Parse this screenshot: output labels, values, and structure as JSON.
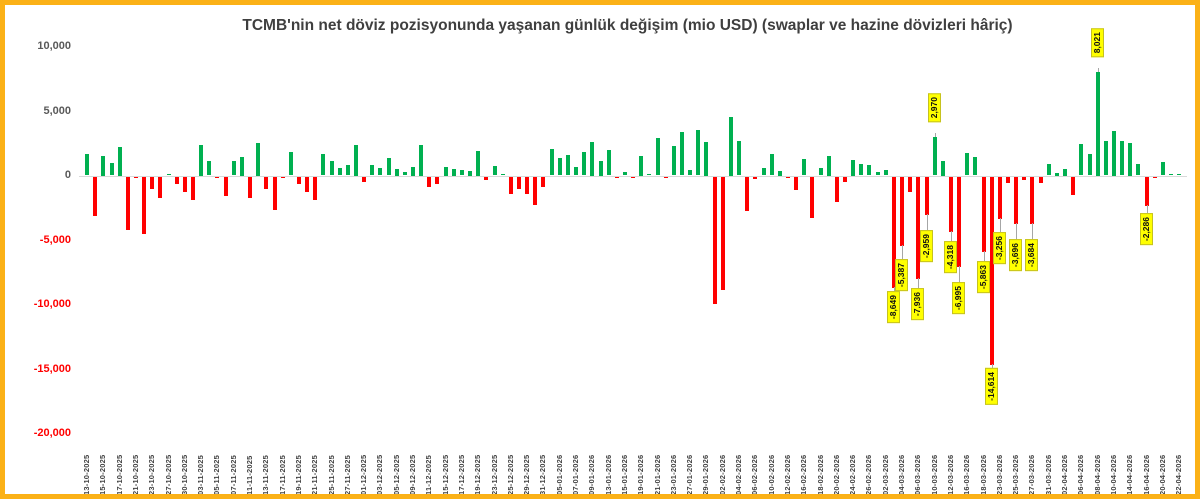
{
  "title": "TCMB'nin net döviz pozisyonunda yaşanan günlük değişim (mio USD) (swaplar ve hazine dövizleri hâriç)",
  "colors": {
    "positive_bar": "#00B050",
    "negative_bar": "#FF0000",
    "callout_background": "#FFFF00",
    "frame_border": "#FBB117",
    "axis_text": "#595959",
    "negative_axis_text": "#FF0000",
    "date_text": "#404040",
    "zero_line": "#D9D9D9"
  },
  "chart_data": {
    "type": "bar",
    "title": "TCMB'nin net döviz pozisyonunda yaşanan günlük değişim (mio USD) (swaplar ve hazine dövizleri hâriç)",
    "unit": "mio USD",
    "grid": false,
    "legend": false,
    "ylim": [
      -20000,
      10000
    ],
    "y_ticks": [
      {
        "value": 10000,
        "label": "10,000"
      },
      {
        "value": 5000,
        "label": "5,000"
      },
      {
        "value": 0,
        "label": "0"
      },
      {
        "value": -5000,
        "label": "-5,000"
      },
      {
        "value": -10000,
        "label": "-10,000"
      },
      {
        "value": -15000,
        "label": "-15,000"
      },
      {
        "value": -20000,
        "label": "-20,000"
      }
    ],
    "x_tick_labels": [
      "13-10-2025",
      "15-10-2025",
      "17-10-2025",
      "21-10-2025",
      "23-10-2025",
      "27-10-2025",
      "30-10-2025",
      "03-11-2025",
      "05-11-2025",
      "07-11-2025",
      "11-11-2025",
      "13-11-2025",
      "17-11-2025",
      "19-11-2025",
      "21-11-2025",
      "25-11-2025",
      "27-11-2025",
      "01-12-2025",
      "03-12-2025",
      "05-12-2025",
      "09-12-2025",
      "11-12-2025",
      "15-12-2025",
      "17-12-2025",
      "19-12-2025",
      "23-12-2025",
      "25-12-2025",
      "29-12-2025",
      "31-12-2025",
      "05-01-2026",
      "07-01-2026",
      "09-01-2026",
      "13-01-2026",
      "15-01-2026",
      "19-01-2026",
      "21-01-2026",
      "23-01-2026",
      "27-01-2026",
      "29-01-2026",
      "02-02-2026",
      "04-02-2026",
      "06-02-2026",
      "10-02-2026",
      "12-02-2026",
      "16-02-2026",
      "18-02-2026",
      "20-02-2026",
      "24-02-2026",
      "26-02-2026",
      "02-03-2026",
      "04-03-2026",
      "06-03-2026",
      "10-03-2026",
      "12-03-2026",
      "16-03-2026",
      "18-03-2026",
      "23-03-2026",
      "25-03-2026",
      "27-03-2026",
      "31-03-2026",
      "02-04-2026",
      "06-04-2026",
      "08-04-2026",
      "10-04-2026",
      "14-04-2026",
      "16-04-2026",
      "20-04-2026",
      "22-04-2026"
    ],
    "tick_every": 2,
    "values": [
      1700,
      -3050,
      1550,
      1000,
      2250,
      -4150,
      -100,
      -4450,
      -950,
      -1700,
      150,
      -590,
      -1160,
      -1800,
      2400,
      1100,
      -150,
      -1500,
      1100,
      1470,
      -1650,
      2500,
      -950,
      -2600,
      -100,
      1800,
      -600,
      -1160,
      -1800,
      1700,
      1100,
      600,
      830,
      2400,
      -440,
      780,
      600,
      1350,
      500,
      250,
      700,
      2400,
      -780,
      -600,
      700,
      500,
      400,
      350,
      1900,
      -260,
      730,
      150,
      -1350,
      -960,
      -1350,
      -2200,
      -780,
      2050,
      1350,
      1600,
      650,
      1850,
      2600,
      1160,
      1950,
      -150,
      250,
      -100,
      1550,
      100,
      2900,
      -150,
      2280,
      3400,
      440,
      3500,
      2600,
      -9900,
      -8800,
      4570,
      2660,
      -2700,
      -200,
      600,
      1680,
      390,
      -50,
      -1030,
      1300,
      -3180,
      570,
      1500,
      -2010,
      -440,
      1240,
      900,
      780,
      290,
      440,
      -8649,
      -5387,
      -1160,
      -7936,
      -2959,
      2970,
      1160,
      -4318,
      -6995,
      1740,
      1420,
      -5863,
      -14614,
      -3256,
      -490,
      -3696,
      -240,
      -3684,
      -490,
      910,
      230,
      500,
      -1420,
      2460,
      1680,
      8021,
      2640,
      3490,
      2640,
      2500,
      910,
      -2286,
      -150,
      1040,
      150,
      100
    ],
    "callouts": [
      {
        "index": 99,
        "label": "-8,649",
        "offset": 4
      },
      {
        "index": 100,
        "label": "-5,387",
        "offset": 14
      },
      {
        "index": 102,
        "label": "-7,936",
        "offset": 10
      },
      {
        "index": 103,
        "label": "-2,959",
        "offset": 16
      },
      {
        "index": 104,
        "label": "2,970",
        "offset": 4
      },
      {
        "index": 106,
        "label": "-4,318",
        "offset": 10
      },
      {
        "index": 107,
        "label": "-6,995",
        "offset": 16
      },
      {
        "index": 110,
        "label": "-5,863",
        "offset": 10
      },
      {
        "index": 111,
        "label": "-14,614",
        "offset": 4
      },
      {
        "index": 112,
        "label": "-3,256",
        "offset": 14
      },
      {
        "index": 114,
        "label": "-3,696",
        "offset": 16
      },
      {
        "index": 116,
        "label": "-3,684",
        "offset": 16
      },
      {
        "index": 124,
        "label": "8,021",
        "offset": 4
      },
      {
        "index": 130,
        "label": "-2,286",
        "offset": 8
      }
    ]
  }
}
